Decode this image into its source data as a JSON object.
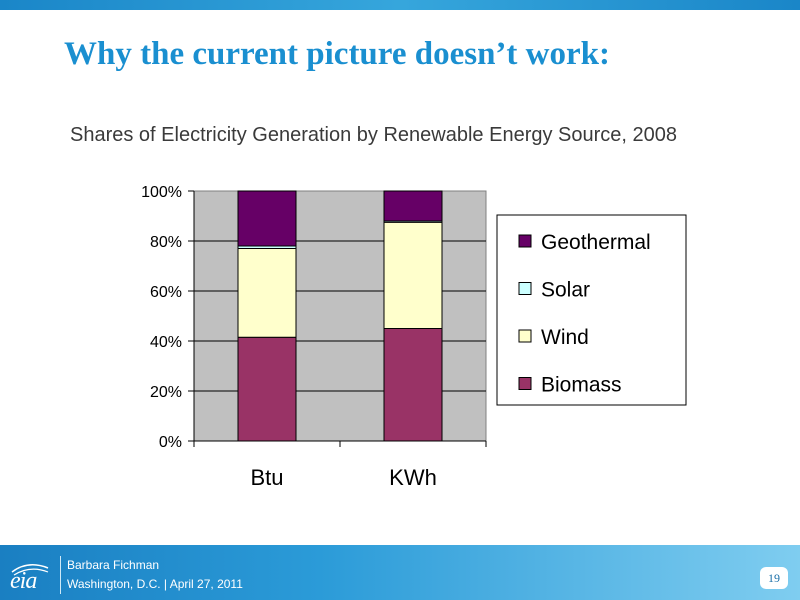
{
  "slide": {
    "title": "Why the current picture doesn’t work:"
  },
  "chart_data": {
    "type": "bar",
    "stacked": true,
    "percent": true,
    "title": "Shares of Electricity Generation by Renewable Energy Source, 2008",
    "categories": [
      "Btu",
      "KWh"
    ],
    "series": [
      {
        "name": "Biomass",
        "values": [
          41.5,
          45
        ],
        "color": "#993366"
      },
      {
        "name": "Wind",
        "values": [
          35.5,
          42.5
        ],
        "color": "#ffffcc"
      },
      {
        "name": "Solar",
        "values": [
          1,
          0.5
        ],
        "color": "#ccffff"
      },
      {
        "name": "Geothermal",
        "values": [
          22,
          12
        ],
        "color": "#660066"
      }
    ],
    "ylim": [
      0,
      100
    ],
    "y_ticks": [
      "0%",
      "20%",
      "40%",
      "60%",
      "80%",
      "100%"
    ],
    "legend_position": "right",
    "plot_background": "#c0c0c0",
    "grid": true
  },
  "footer": {
    "logo_text": "eia",
    "author": "Barbara Fichman",
    "location_date": "Washington, D.C.  |  April 27, 2011",
    "page_number": "19",
    "colors": {
      "bar": "#1a86c8"
    }
  }
}
